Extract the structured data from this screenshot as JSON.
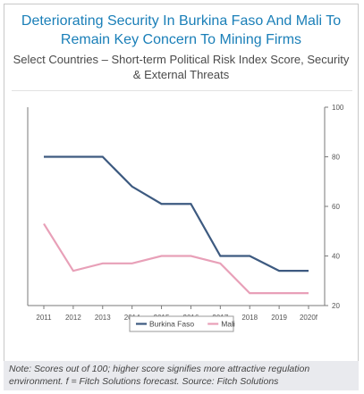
{
  "header": {
    "title": "Deteriorating Security In Burkina Faso And Mali To Remain Key Concern To Mining Firms",
    "subtitle": "Select Countries – Short-term Political Risk Index Score, Security & External Threats"
  },
  "colors": {
    "burkina": "#3d5a80",
    "mali": "#e8a0b8",
    "title": "#1a7fb8"
  },
  "note": "Note: Scores out of 100; higher score signifies more attractive regulation environment. f = Fitch Solutions forecast. Source: Fitch Solutions",
  "chart_data": {
    "type": "line",
    "title": "Deteriorating Security In Burkina Faso And Mali To Remain Key Concern To Mining Firms",
    "subtitle": "Select Countries – Short-term Political Risk Index Score, Security & External Threats",
    "x": [
      "2011",
      "2012",
      "2013",
      "2014",
      "2015",
      "2016",
      "2017",
      "2018",
      "2019",
      "2020f"
    ],
    "yticks": [
      20,
      40,
      60,
      80,
      100
    ],
    "ylim": [
      20,
      100
    ],
    "y_axis_side": "right",
    "grid": false,
    "legend_position": "bottom",
    "series": [
      {
        "name": "Burkina Faso",
        "values": [
          80,
          80,
          80,
          68,
          61,
          61,
          40,
          40,
          34,
          34
        ]
      },
      {
        "name": "Mali",
        "values": [
          53,
          34,
          37,
          37,
          40,
          40,
          37,
          25,
          25,
          25
        ]
      }
    ]
  }
}
